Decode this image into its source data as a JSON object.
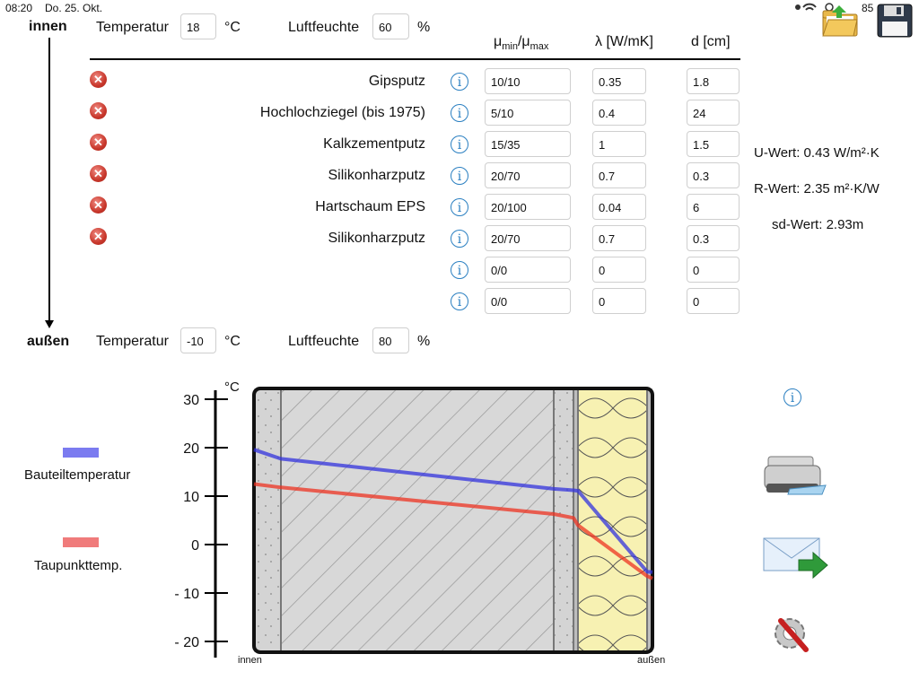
{
  "status_bar": {
    "time": "08:20",
    "date": "Do. 25. Okt.",
    "battery": "85"
  },
  "top_icons": {
    "open": "open-folder-icon",
    "save": "floppy-disk-icon"
  },
  "inside": {
    "label": "innen",
    "temp_label": "Temperatur",
    "temp_value": "18",
    "temp_unit": "°C",
    "humidity_label": "Luftfeuchte",
    "humidity_value": "60",
    "humidity_unit": "%"
  },
  "outside": {
    "label": "außen",
    "temp_label": "Temperatur",
    "temp_value": "-10",
    "temp_unit": "°C",
    "humidity_label": "Luftfeuchte",
    "humidity_value": "80",
    "humidity_unit": "%"
  },
  "table_headers": {
    "mu": "μ",
    "mu_min": "min",
    "slash": "/μ",
    "mu_max": "max",
    "lambda": "λ [W/mK]",
    "d": "d [cm]"
  },
  "layers": [
    {
      "name": "Gipsputz",
      "mu": "10/10",
      "lambda": "0.35",
      "d": "1.8"
    },
    {
      "name": "Hochlochziegel (bis 1975)",
      "mu": "5/10",
      "lambda": "0.4",
      "d": "24"
    },
    {
      "name": "Kalkzementputz",
      "mu": "15/35",
      "lambda": "1",
      "d": "1.5"
    },
    {
      "name": "Silikonharzputz",
      "mu": "20/70",
      "lambda": "0.7",
      "d": "0.3"
    },
    {
      "name": "Hartschaum EPS",
      "mu": "20/100",
      "lambda": "0.04",
      "d": "6"
    },
    {
      "name": "Silikonharzputz",
      "mu": "20/70",
      "lambda": "0.7",
      "d": "0.3"
    },
    {
      "name": "",
      "mu": "0/0",
      "lambda": "0",
      "d": "0"
    },
    {
      "name": "",
      "mu": "0/0",
      "lambda": "0",
      "d": "0"
    }
  ],
  "results": {
    "u": "U-Wert: 0.43 W/m²·K",
    "r": "R-Wert: 2.35 m²·K/W",
    "sd": "sd-Wert: 2.93m"
  },
  "legend": {
    "temp_label": "Bauteiltemperatur",
    "temp_color": "#7b7bf0",
    "dew_label": "Taupunkttemp.",
    "dew_color": "#f07b7b"
  },
  "chart_data": {
    "type": "line",
    "ylabel": "°C",
    "ylim": [
      -20,
      30
    ],
    "yticks": [
      "30",
      "20",
      "10",
      "0",
      "- 10",
      "- 20"
    ],
    "xlabels": {
      "left": "innen",
      "right": "außen"
    },
    "series": [
      {
        "name": "Bauteiltemperatur",
        "color": "#3333dd",
        "x_cm": [
          0,
          1.8,
          25.8,
          27.3,
          27.6,
          33.6,
          33.9
        ],
        "values": [
          19.6,
          17.7,
          11.5,
          11.2,
          11.1,
          -5.6,
          -5.7
        ]
      },
      {
        "name": "Taupunkttemp.",
        "color": "#ee3322",
        "x_cm": [
          0,
          1.8,
          25.8,
          27.3,
          27.6,
          33.6,
          33.9
        ],
        "values": [
          12.5,
          11.8,
          6.3,
          5.5,
          4.0,
          -6.5,
          -7.0
        ]
      }
    ]
  },
  "side_icons": {
    "info": "info-icon",
    "print": "printer-icon",
    "mail": "email-export-icon",
    "settings": "settings-icon"
  }
}
